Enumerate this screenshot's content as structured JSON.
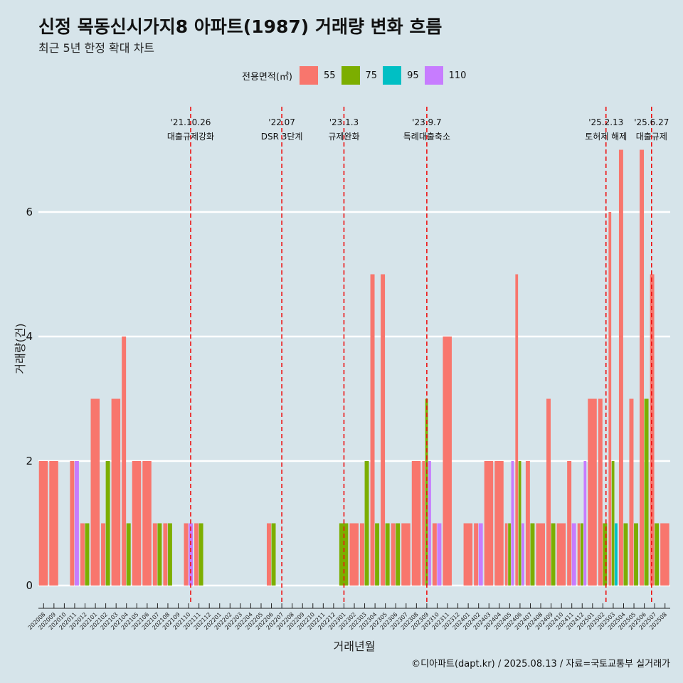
{
  "title": "신정 목동신시가지8 아파트(1987) 거래량 변화 흐름",
  "subtitle": "최근 5년 한정 확대 차트",
  "legend": {
    "title": "전용면적(㎡)",
    "items": [
      {
        "label": "55",
        "color": "#f8766d"
      },
      {
        "label": "75",
        "color": "#7cae00"
      },
      {
        "label": "95",
        "color": "#00bfc4"
      },
      {
        "label": "110",
        "color": "#c77cff"
      }
    ]
  },
  "caption": "©디아파트(dapt.kr) / 2025.08.13 / 자료=국토교통부 실거래가",
  "chart_data": {
    "type": "bar",
    "xlabel": "거래년월",
    "ylabel": "거래량(건)",
    "ylim": [
      0,
      7.4
    ],
    "y_ticks": [
      0,
      2,
      4,
      6
    ],
    "grid": true,
    "legend_position": "top",
    "categories": [
      "202008",
      "202009",
      "202010",
      "202011",
      "202012",
      "202101",
      "202102",
      "202103",
      "202104",
      "202105",
      "202106",
      "202107",
      "202108",
      "202109",
      "202110",
      "202111",
      "202112",
      "202201",
      "202202",
      "202203",
      "202204",
      "202205",
      "202206",
      "202207",
      "202208",
      "202209",
      "202210",
      "202211",
      "202212",
      "202301",
      "202302",
      "202303",
      "202304",
      "202305",
      "202306",
      "202307",
      "202308",
      "202309",
      "202310",
      "202311",
      "202312",
      "202401",
      "202402",
      "202403",
      "202404",
      "202405",
      "202406",
      "202407",
      "202408",
      "202409",
      "202410",
      "202411",
      "202412",
      "202501",
      "202502",
      "202503",
      "202504",
      "202505",
      "202506",
      "202507",
      "202508"
    ],
    "series": [
      {
        "name": "55",
        "color": "#f8766d",
        "values": [
          2,
          2,
          0,
          2,
          1,
          3,
          1,
          3,
          4,
          2,
          2,
          1,
          1,
          0,
          1,
          1,
          0,
          0,
          0,
          0,
          0,
          0,
          1,
          0,
          0,
          0,
          0,
          0,
          0,
          0,
          1,
          1,
          5,
          5,
          1,
          1,
          2,
          2,
          1,
          4,
          0,
          1,
          1,
          2,
          2,
          1,
          5,
          2,
          1,
          3,
          1,
          2,
          1,
          3,
          3,
          6,
          7,
          3,
          7,
          5,
          1
        ]
      },
      {
        "name": "75",
        "color": "#7cae00",
        "values": [
          0,
          0,
          0,
          0,
          1,
          0,
          2,
          0,
          1,
          0,
          0,
          1,
          1,
          0,
          0,
          1,
          0,
          0,
          0,
          0,
          0,
          0,
          1,
          0,
          0,
          0,
          0,
          0,
          0,
          1,
          0,
          2,
          1,
          1,
          1,
          0,
          0,
          3,
          0,
          0,
          0,
          0,
          0,
          0,
          0,
          1,
          2,
          1,
          0,
          1,
          0,
          0,
          1,
          0,
          1,
          2,
          1,
          1,
          3,
          1,
          0
        ]
      },
      {
        "name": "95",
        "color": "#00bfc4",
        "values": [
          0,
          0,
          0,
          0,
          0,
          0,
          0,
          0,
          0,
          0,
          0,
          0,
          0,
          0,
          0,
          0,
          0,
          0,
          0,
          0,
          0,
          0,
          0,
          0,
          0,
          0,
          0,
          0,
          0,
          0,
          0,
          0,
          0,
          0,
          0,
          0,
          0,
          0,
          0,
          0,
          0,
          0,
          0,
          0,
          0,
          0,
          0,
          0,
          0,
          0,
          0,
          0,
          0,
          0,
          0,
          1,
          0,
          0,
          0,
          0,
          0
        ]
      },
      {
        "name": "110",
        "color": "#c77cff",
        "values": [
          0,
          0,
          0,
          2,
          0,
          0,
          0,
          0,
          0,
          0,
          0,
          0,
          0,
          0,
          1,
          0,
          0,
          0,
          0,
          0,
          0,
          0,
          0,
          0,
          0,
          0,
          0,
          0,
          0,
          0,
          0,
          0,
          0,
          0,
          0,
          0,
          0,
          2,
          1,
          0,
          0,
          0,
          1,
          0,
          0,
          2,
          1,
          0,
          0,
          0,
          0,
          1,
          2,
          0,
          0,
          0,
          0,
          0,
          0,
          0,
          0
        ]
      }
    ],
    "events": [
      {
        "date": "'21.10.26",
        "label": "대출규제강화",
        "at": "202110",
        "offset": 0.2
      },
      {
        "date": "'22.07",
        "label": "DSR 3단계",
        "at": "202207",
        "offset": 0.0
      },
      {
        "date": "'23.1.3",
        "label": "규제완화",
        "at": "202301",
        "offset": 0.0
      },
      {
        "date": "'23.9.7",
        "label": "특례대출축소",
        "at": "202309",
        "offset": 0.0
      },
      {
        "date": "'25.2.13",
        "label": "토허제 해제",
        "at": "202502",
        "offset": 0.3
      },
      {
        "date": "'25.6.27",
        "label": "대출규제",
        "at": "202506",
        "offset": 0.7
      }
    ]
  }
}
